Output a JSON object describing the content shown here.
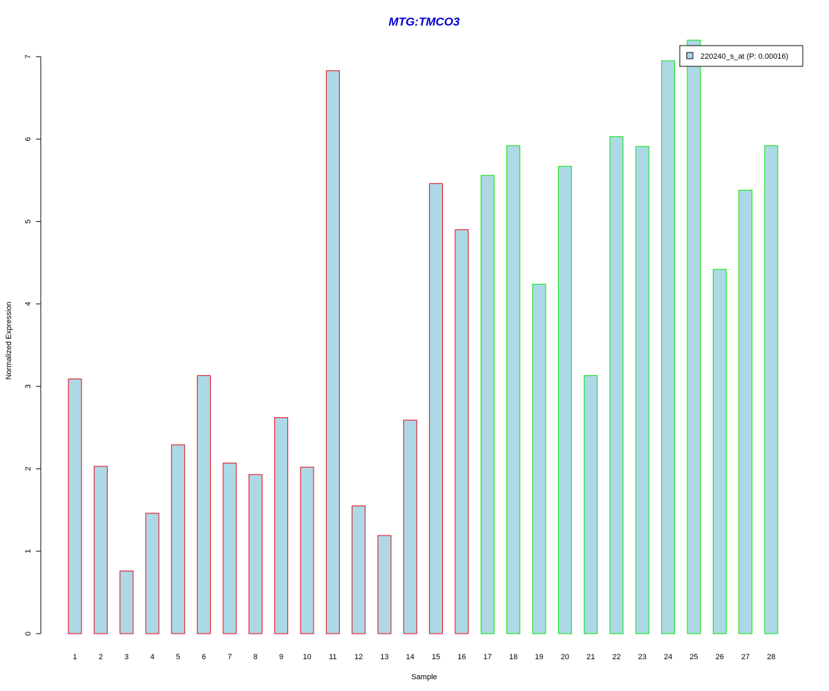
{
  "chart_data": {
    "type": "bar",
    "title": "MTG:TMCO3",
    "xlabel": "Sample",
    "ylabel": "Normalized Expression",
    "ylim": [
      0,
      7
    ],
    "yticks": [
      "0",
      "1",
      "2",
      "3",
      "4",
      "5",
      "6",
      "7"
    ],
    "categories": [
      "1",
      "2",
      "3",
      "4",
      "5",
      "6",
      "7",
      "8",
      "9",
      "10",
      "11",
      "12",
      "13",
      "14",
      "15",
      "16",
      "17",
      "18",
      "19",
      "20",
      "21",
      "22",
      "23",
      "24",
      "25",
      "26",
      "27",
      "28"
    ],
    "series": [
      {
        "name": "220240_s_at (P: 0.00016)",
        "values": [
          3.09,
          2.03,
          0.76,
          1.46,
          2.29,
          3.13,
          2.07,
          1.93,
          2.62,
          2.02,
          6.83,
          1.55,
          1.19,
          2.59,
          5.46,
          4.9,
          5.56,
          5.92,
          4.24,
          5.67,
          3.13,
          6.03,
          5.91,
          6.95,
          7.2,
          4.42,
          5.38,
          5.92
        ]
      }
    ],
    "groups": [
      {
        "samples": [
          1,
          16
        ],
        "border_color": "#e8000b"
      },
      {
        "samples": [
          17,
          28
        ],
        "border_color": "#00e600"
      }
    ],
    "bar_fill": "#add8e6",
    "title_color": "#0000cd",
    "legend_position": "top-right",
    "grid": false
  }
}
